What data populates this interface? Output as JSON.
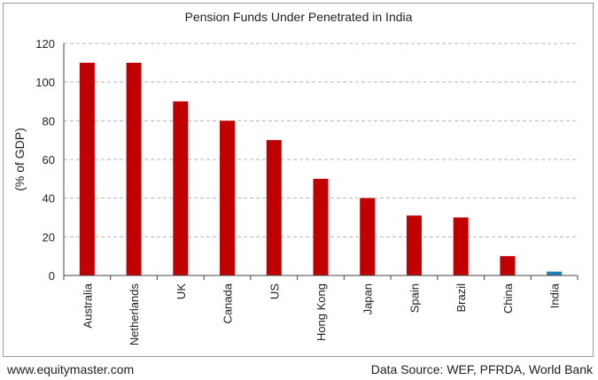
{
  "chart_data": {
    "type": "bar",
    "title": "Pension Funds Under Penetrated in India",
    "xlabel": "",
    "ylabel": "(% of GDP)",
    "categories": [
      "Australia",
      "Netherlands",
      "UK",
      "Canada",
      "US",
      "Hong Kong",
      "Japan",
      "Spain",
      "Brazil",
      "China",
      "India"
    ],
    "values": [
      110,
      110,
      90,
      80,
      70,
      50,
      40,
      31,
      30,
      10,
      2
    ],
    "ylim": [
      0,
      120
    ],
    "yticks": [
      0,
      20,
      40,
      60,
      80,
      100,
      120
    ],
    "grid": "horizontal dashed",
    "legend": "none",
    "colors": {
      "bar": "#c00000",
      "highlight": "#1f7fb4",
      "highlight_category": "India",
      "grid": "#b5b5b5"
    }
  },
  "footer": {
    "source_site": "www.equitymaster.com",
    "data_source": "Data Source: WEF, PFRDA, World Bank"
  }
}
